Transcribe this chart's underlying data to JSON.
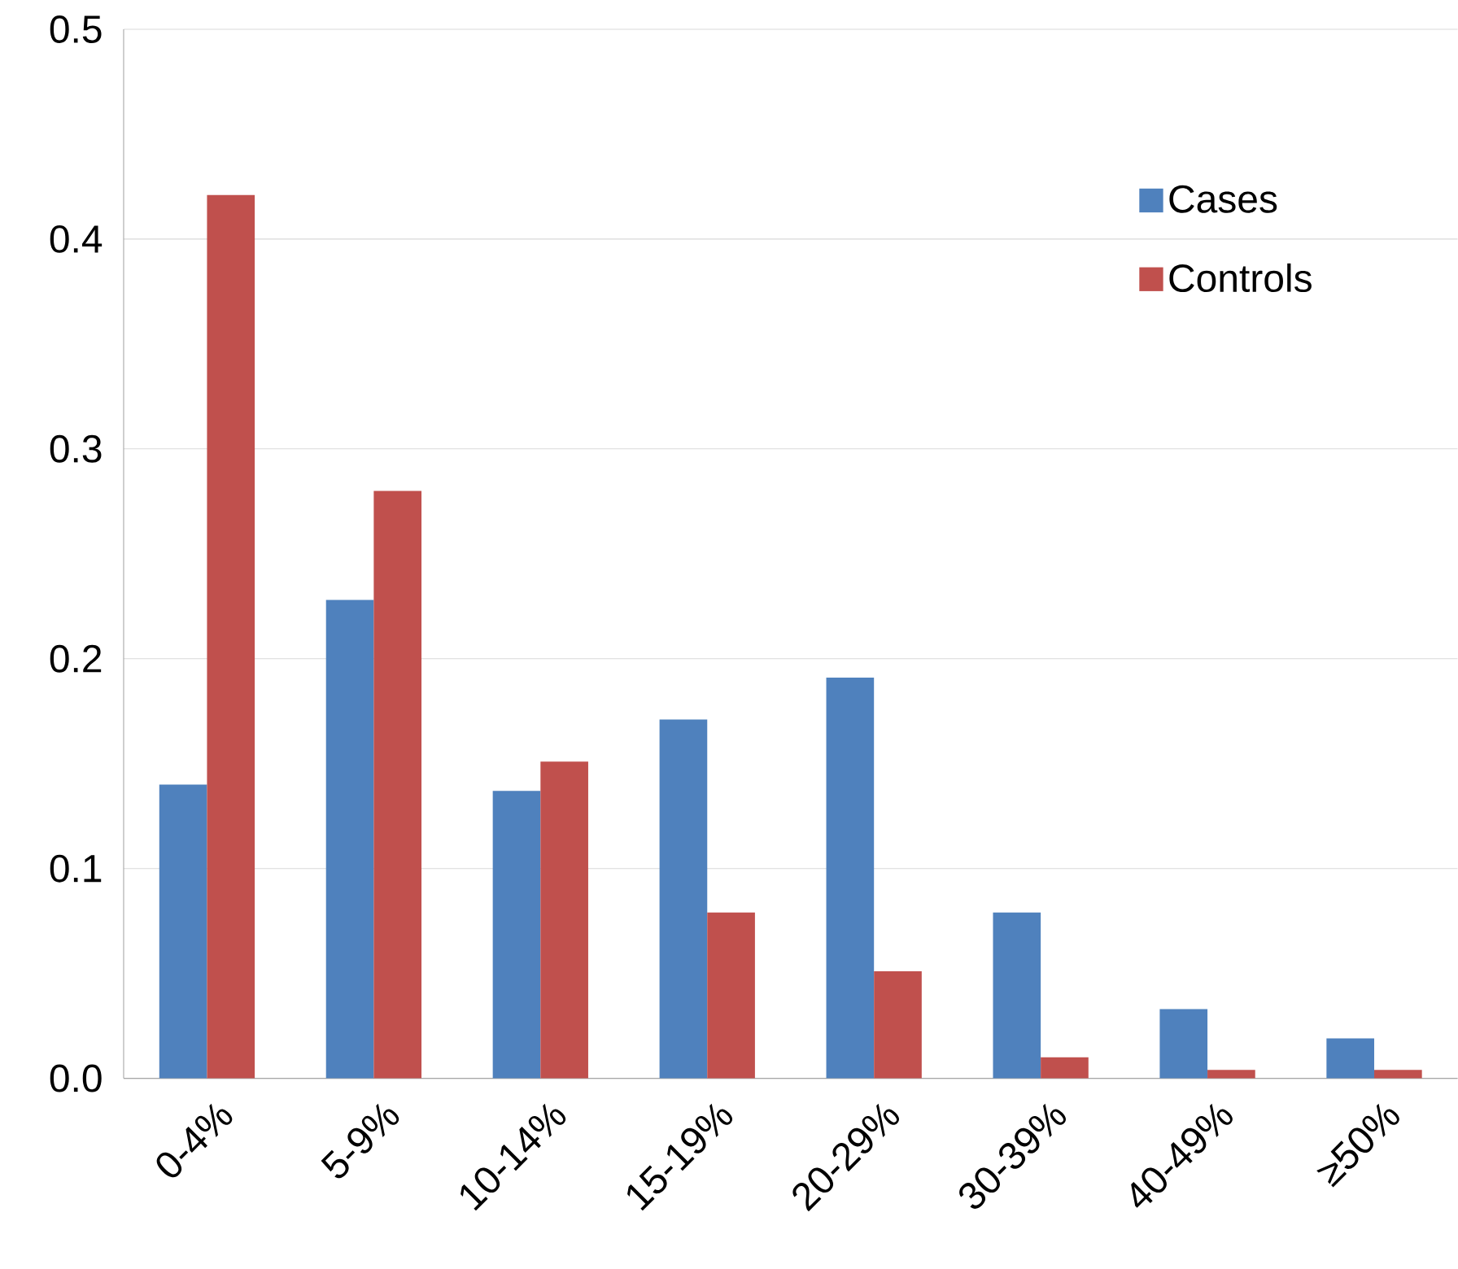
{
  "chart_data": {
    "type": "bar",
    "categories": [
      "0-4%",
      "5-9%",
      "10-14%",
      "15-19%",
      "20-29%",
      "30-39%",
      "40-49%",
      "≥50%"
    ],
    "series": [
      {
        "name": "Cases",
        "color": "#4f81bd",
        "values": [
          0.14,
          0.228,
          0.137,
          0.171,
          0.191,
          0.079,
          0.033,
          0.019
        ]
      },
      {
        "name": "Controls",
        "color": "#c0504d",
        "values": [
          0.421,
          0.28,
          0.151,
          0.079,
          0.051,
          0.01,
          0.004,
          0.004
        ]
      }
    ],
    "ylim": [
      0,
      0.5
    ],
    "yticks": [
      {
        "value": 0,
        "label": "0.0"
      },
      {
        "value": 0.1,
        "label": "0.1"
      },
      {
        "value": 0.2,
        "label": "0.2"
      },
      {
        "value": 0.3,
        "label": "0.3"
      },
      {
        "value": 0.4,
        "label": "0.4"
      },
      {
        "value": 0.5,
        "label": "0.5"
      }
    ],
    "grid": "y",
    "legend": "top right"
  }
}
